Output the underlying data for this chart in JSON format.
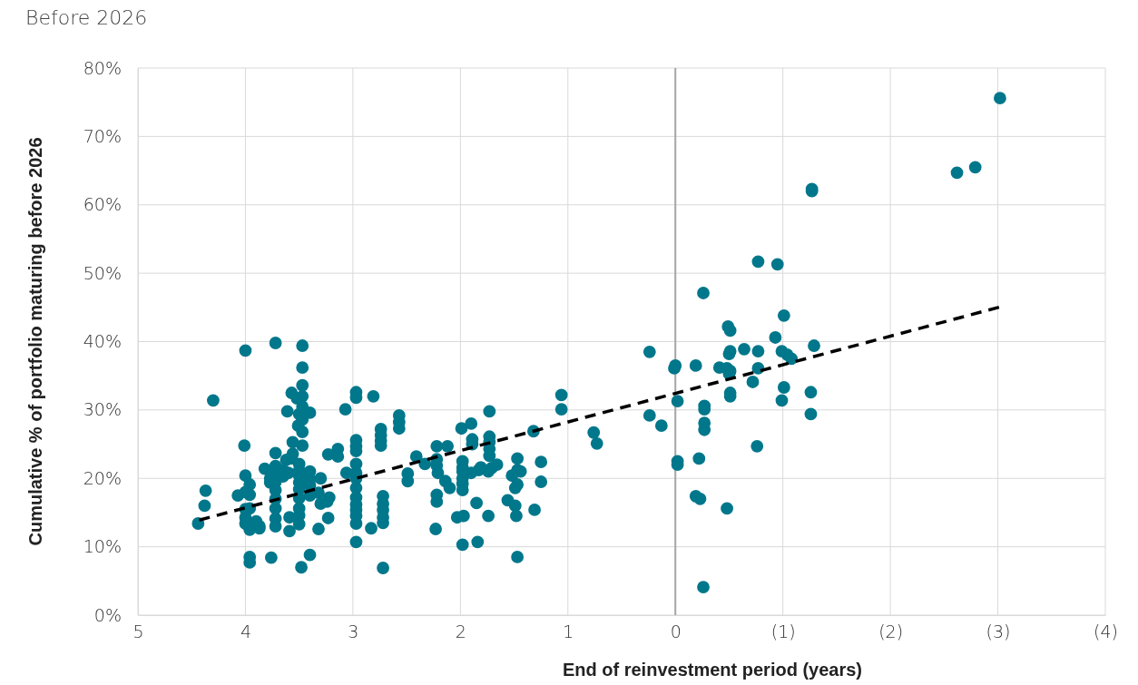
{
  "chart_data": {
    "type": "scatter",
    "title": "Before 2026",
    "xlabel": "End of reinvestment period (years)",
    "ylabel": "Cumulative % of portfolio maturing before 2026",
    "xlim": [
      5,
      -4
    ],
    "xticks": [
      5,
      4,
      3,
      2,
      1,
      0,
      {
        "value": -1,
        "label": "(1)"
      },
      {
        "value": -2,
        "label": "(2)"
      },
      {
        "value": -3,
        "label": "(3)"
      },
      {
        "value": -4,
        "label": "(4)"
      }
    ],
    "ylim": [
      0,
      80
    ],
    "yticks": [
      {
        "value": 0,
        "label": "0%"
      },
      {
        "value": 10,
        "label": "10%"
      },
      {
        "value": 20,
        "label": "20%"
      },
      {
        "value": 30,
        "label": "30%"
      },
      {
        "value": 40,
        "label": "40%"
      },
      {
        "value": 50,
        "label": "50%"
      },
      {
        "value": 60,
        "label": "60%"
      },
      {
        "value": 70,
        "label": "70%"
      },
      {
        "value": 80,
        "label": "80%"
      }
    ],
    "grid": true,
    "marker": "circle",
    "ref_lines": [
      {
        "axis": "x",
        "value": 0,
        "color": "#a6a6a6"
      }
    ],
    "series": [
      {
        "color": "#00778b",
        "x": [
          -3.02,
          -2.79,
          -2.62,
          -1.27,
          -1.27,
          -0.77,
          -0.95,
          -0.26,
          -1.01,
          -0.49,
          -0.51,
          -1.29,
          -0.64,
          -0.51,
          -0.5,
          -0.77,
          0.24,
          -0.93,
          -0.99,
          -1.04,
          -1.08,
          0.0,
          0.01,
          -0.19,
          -0.41,
          -0.48,
          -0.77,
          -0.51,
          -0.5,
          -0.72,
          -1.01,
          -0.51,
          -0.51,
          -1.26,
          -0.99,
          -0.02,
          -0.27,
          -0.27,
          0.24,
          -1.26,
          -0.27,
          -0.27,
          0.13,
          -0.76,
          -0.22,
          -0.02,
          -0.02,
          -0.19,
          -0.23,
          -0.48,
          -0.26,
          1.06,
          1.06,
          0.76,
          0.73,
          1.32,
          1.25,
          1.25,
          1.31,
          1.47,
          1.47,
          1.44,
          1.52,
          1.47,
          1.49,
          1.49,
          1.56,
          1.48,
          1.47,
          1.74,
          1.71,
          1.73,
          1.73,
          1.73,
          1.73,
          1.73,
          1.66,
          1.81,
          1.83,
          1.85,
          1.84,
          1.74,
          1.9,
          1.89,
          1.89,
          1.9,
          1.99,
          1.98,
          1.98,
          1.98,
          1.98,
          1.98,
          1.98,
          1.97,
          1.98,
          2.03,
          2.12,
          2.14,
          2.1,
          2.22,
          2.22,
          2.22,
          2.22,
          2.21,
          2.22,
          2.23,
          2.33,
          2.41,
          2.49,
          2.49,
          2.57,
          2.57,
          2.57,
          2.74,
          2.74,
          2.74,
          2.74,
          2.72,
          2.72,
          2.72,
          2.72,
          2.72,
          2.72,
          2.81,
          2.83,
          2.97,
          2.97,
          2.97,
          2.97,
          2.97,
          2.97,
          2.97,
          2.97,
          2.97,
          2.97,
          2.97,
          2.97,
          2.97,
          2.97,
          2.97,
          3.07,
          3.06,
          3.14,
          3.14,
          3.22,
          3.24,
          3.23,
          3.23,
          3.3,
          3.32,
          3.3,
          3.32,
          3.4,
          3.4,
          3.4,
          3.4,
          3.4,
          3.4,
          3.47,
          3.47,
          3.47,
          3.47,
          3.47,
          3.47,
          3.47,
          3.47,
          3.5,
          3.51,
          3.57,
          3.52,
          3.56,
          3.56,
          3.57,
          3.5,
          3.5,
          3.5,
          3.5,
          3.5,
          3.5,
          3.5,
          3.5,
          3.5,
          3.48,
          3.6,
          3.62,
          3.59,
          3.59,
          3.65,
          3.65,
          3.61,
          3.72,
          3.72,
          3.72,
          3.72,
          3.72,
          3.72,
          3.72,
          3.72,
          3.72,
          3.72,
          3.76,
          3.82,
          3.77,
          3.77,
          3.87,
          3.87,
          3.9,
          3.96,
          3.96,
          3.96,
          3.96,
          3.96,
          3.96,
          4.0,
          4.01,
          4.0,
          4.0,
          4.0,
          4.0,
          4.0,
          4.07,
          4.3,
          4.37,
          4.38,
          4.44
        ],
        "values": [
          75.6,
          65.5,
          64.7,
          62.3,
          62.0,
          51.7,
          51.3,
          47.1,
          43.8,
          42.2,
          41.6,
          39.4,
          38.9,
          38.6,
          38.2,
          38.6,
          38.5,
          40.6,
          38.6,
          38.1,
          37.5,
          36.5,
          36.1,
          36.5,
          36.2,
          36.1,
          36.1,
          35.7,
          35.3,
          34.1,
          33.3,
          32.5,
          32.0,
          32.6,
          31.4,
          31.3,
          30.6,
          30.1,
          29.2,
          29.4,
          28.1,
          27.1,
          27.7,
          24.7,
          22.9,
          22.5,
          22.0,
          17.4,
          17.0,
          15.6,
          4.1,
          32.2,
          30.1,
          26.7,
          25.1,
          26.9,
          22.4,
          19.5,
          15.4,
          22.9,
          21.2,
          21.0,
          20.4,
          19.1,
          18.6,
          16.0,
          16.8,
          14.5,
          8.5,
          21.0,
          21.5,
          29.8,
          26.1,
          25.3,
          24.3,
          23.3,
          22.0,
          21.6,
          21.2,
          16.4,
          10.7,
          14.5,
          28.0,
          25.7,
          25.0,
          20.8,
          27.3,
          22.5,
          21.6,
          21.0,
          20.0,
          19.2,
          18.3,
          14.5,
          10.3,
          14.3,
          24.7,
          19.6,
          18.6,
          17.6,
          24.7,
          22.8,
          21.9,
          20.8,
          16.6,
          12.6,
          22.1,
          23.2,
          20.7,
          19.6,
          29.2,
          28.2,
          27.3,
          27.2,
          26.3,
          25.5,
          24.8,
          17.4,
          16.3,
          15.4,
          14.3,
          13.5,
          6.9,
          32.0,
          12.7,
          32.6,
          31.8,
          25.6,
          24.7,
          24.0,
          22.1,
          20.8,
          20.0,
          18.6,
          17.2,
          16.2,
          15.4,
          14.5,
          13.4,
          10.7,
          30.1,
          20.8,
          24.3,
          23.2,
          17.2,
          16.6,
          14.2,
          23.5,
          20.0,
          17.9,
          16.3,
          12.6,
          29.6,
          21.0,
          19.9,
          19.0,
          17.5,
          8.8,
          39.4,
          36.2,
          33.6,
          32.0,
          30.5,
          28.6,
          26.8,
          24.8,
          29.4,
          27.7,
          32.5,
          31.7,
          25.3,
          23.6,
          22.9,
          22.1,
          21.2,
          20.4,
          19.4,
          18.4,
          17.1,
          15.6,
          14.6,
          13.3,
          7.0,
          20.8,
          22.7,
          14.3,
          12.3,
          21.2,
          20.3,
          29.8,
          39.8,
          23.7,
          21.8,
          20.8,
          19.5,
          18.3,
          17.0,
          15.6,
          14.1,
          13.0,
          8.4,
          21.4,
          20.0,
          19.4,
          13.0,
          12.7,
          13.7,
          19.1,
          17.6,
          15.6,
          12.5,
          8.5,
          7.7,
          38.7,
          24.8,
          20.4,
          18.0,
          15.5,
          14.3,
          13.4,
          17.5,
          31.4,
          18.2,
          16.0,
          13.4
        ]
      },
      {
        "type": "line",
        "color": "#000000",
        "line_style": "dashed",
        "marker": "none",
        "x": [
          4.43,
          -3.03
        ],
        "values": [
          13.9,
          45.1
        ]
      }
    ]
  }
}
